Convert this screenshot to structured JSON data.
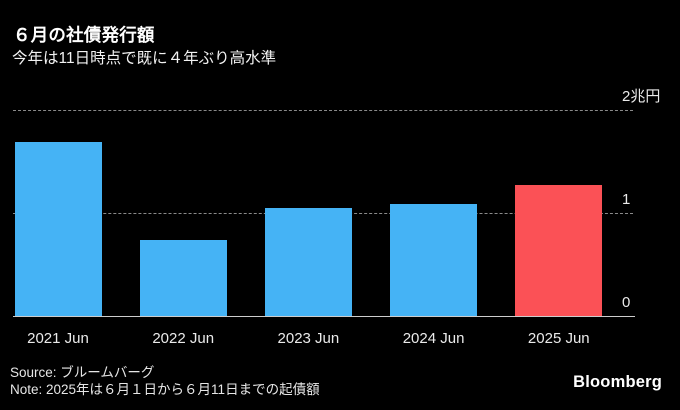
{
  "header": {
    "title": "６月の社債発行額",
    "subtitle": "今年は11日時点で既に４年ぶり高水準"
  },
  "chart_data": {
    "type": "bar",
    "categories": [
      "2021 Jun",
      "2022 Jun",
      "2023 Jun",
      "2024 Jun",
      "2025 Jun"
    ],
    "values": [
      1.69,
      0.74,
      1.05,
      1.09,
      1.27
    ],
    "unit": "兆円",
    "ylim": [
      0,
      2
    ],
    "yticks": [
      {
        "value": 0,
        "label": "0"
      },
      {
        "value": 1,
        "label": "1"
      },
      {
        "value": 2,
        "label": "2兆円"
      }
    ],
    "highlight_index": 4,
    "colors": {
      "bar_default": "#45b3f5",
      "bar_highlight": "#fb5156",
      "background": "#000000",
      "gridline": "#8a8a8a",
      "baseline": "#cdcdcd",
      "text": "#eaeaea"
    },
    "grid": "horizontal-dashed",
    "legend": "none",
    "value_axis_side": "right"
  },
  "footer": {
    "source": "Source: ブルームバーグ",
    "note": "Note: 2025年は６月１日から６月11日までの起債額",
    "logo": "Bloomberg"
  }
}
